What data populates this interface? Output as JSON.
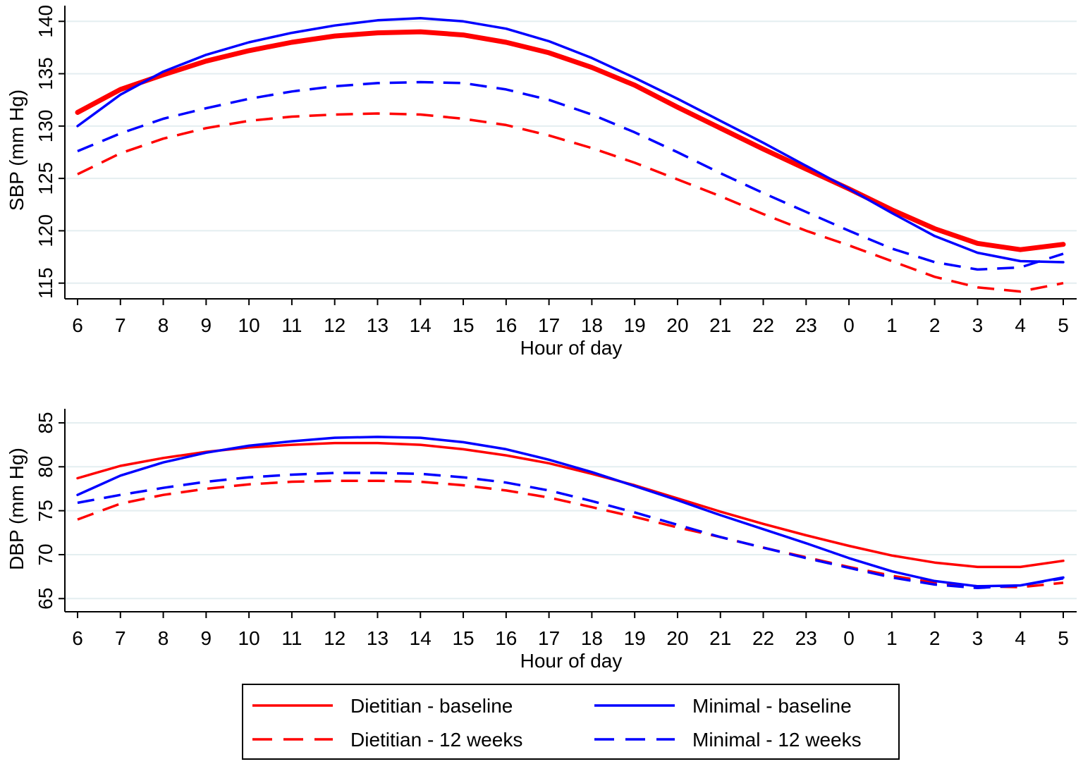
{
  "chart_data": [
    {
      "type": "line",
      "ylabel": "SBP (mm Hg)",
      "xlabel": "Hour of day",
      "categories": [
        "6",
        "7",
        "8",
        "9",
        "10",
        "11",
        "12",
        "13",
        "14",
        "15",
        "16",
        "17",
        "18",
        "19",
        "20",
        "21",
        "22",
        "23",
        "0",
        "1",
        "2",
        "3",
        "4",
        "5"
      ],
      "yticks": [
        115,
        120,
        125,
        130,
        135,
        140
      ],
      "ylim": [
        113.5,
        141.5
      ],
      "grid": true,
      "series": [
        {
          "name": "Dietitian - baseline",
          "color": "#ff0000",
          "style": "solid",
          "thick": true,
          "values": [
            131.3,
            133.5,
            134.9,
            136.2,
            137.2,
            138.0,
            138.6,
            138.9,
            139.0,
            138.7,
            138.0,
            137.0,
            135.6,
            133.9,
            131.8,
            129.8,
            127.8,
            125.9,
            124.0,
            122.0,
            120.2,
            118.8,
            118.2,
            118.7
          ]
        },
        {
          "name": "Dietitian - 12 weeks",
          "color": "#ff0000",
          "style": "dashed",
          "values": [
            125.4,
            127.4,
            128.8,
            129.8,
            130.5,
            130.9,
            131.1,
            131.2,
            131.1,
            130.7,
            130.1,
            129.1,
            127.9,
            126.5,
            124.9,
            123.3,
            121.6,
            120.0,
            118.6,
            117.1,
            115.6,
            114.6,
            114.2,
            115.0
          ]
        },
        {
          "name": "Minimal - baseline",
          "color": "#0000ff",
          "style": "solid",
          "values": [
            130.0,
            133.0,
            135.2,
            136.8,
            138.0,
            138.9,
            139.6,
            140.1,
            140.3,
            140.0,
            139.3,
            138.1,
            136.5,
            134.6,
            132.6,
            130.5,
            128.4,
            126.2,
            124.0,
            121.7,
            119.5,
            117.9,
            117.1,
            117.0
          ]
        },
        {
          "name": "Minimal - 12 weeks",
          "color": "#0000ff",
          "style": "dashed",
          "values": [
            127.6,
            129.3,
            130.7,
            131.7,
            132.6,
            133.3,
            133.8,
            134.1,
            134.2,
            134.1,
            133.5,
            132.5,
            131.1,
            129.4,
            127.5,
            125.5,
            123.6,
            121.8,
            120.0,
            118.3,
            117.0,
            116.3,
            116.5,
            117.8
          ]
        }
      ]
    },
    {
      "type": "line",
      "ylabel": "DBP (mm Hg)",
      "xlabel": "Hour of day",
      "categories": [
        "6",
        "7",
        "8",
        "9",
        "10",
        "11",
        "12",
        "13",
        "14",
        "15",
        "16",
        "17",
        "18",
        "19",
        "20",
        "21",
        "22",
        "23",
        "0",
        "1",
        "2",
        "3",
        "4",
        "5"
      ],
      "yticks": [
        65,
        70,
        75,
        80,
        85
      ],
      "ylim": [
        63.5,
        86.6
      ],
      "grid": true,
      "series": [
        {
          "name": "Dietitian - baseline",
          "color": "#ff0000",
          "style": "solid",
          "values": [
            78.7,
            80.1,
            81.0,
            81.7,
            82.2,
            82.5,
            82.7,
            82.7,
            82.5,
            82.0,
            81.3,
            80.4,
            79.2,
            77.9,
            76.4,
            74.9,
            73.5,
            72.2,
            71.0,
            69.9,
            69.1,
            68.6,
            68.6,
            69.3
          ]
        },
        {
          "name": "Dietitian - 12 weeks",
          "color": "#ff0000",
          "style": "dashed",
          "values": [
            74.0,
            75.8,
            76.8,
            77.5,
            78.0,
            78.3,
            78.4,
            78.4,
            78.3,
            77.9,
            77.3,
            76.5,
            75.4,
            74.3,
            73.1,
            72.0,
            70.8,
            69.7,
            68.6,
            67.6,
            66.8,
            66.4,
            66.3,
            66.8
          ]
        },
        {
          "name": "Minimal - baseline",
          "color": "#0000ff",
          "style": "solid",
          "values": [
            76.8,
            79.0,
            80.5,
            81.6,
            82.4,
            82.9,
            83.3,
            83.4,
            83.3,
            82.8,
            82.0,
            80.8,
            79.4,
            77.8,
            76.2,
            74.5,
            72.9,
            71.3,
            69.6,
            68.1,
            67.0,
            66.4,
            66.5,
            67.4
          ]
        },
        {
          "name": "Minimal - 12 weeks",
          "color": "#0000ff",
          "style": "dashed",
          "values": [
            75.9,
            76.8,
            77.6,
            78.3,
            78.8,
            79.1,
            79.3,
            79.3,
            79.2,
            78.8,
            78.2,
            77.3,
            76.1,
            74.8,
            73.4,
            72.0,
            70.8,
            69.6,
            68.5,
            67.4,
            66.6,
            66.2,
            66.5,
            67.3
          ]
        }
      ]
    }
  ],
  "legend": {
    "items": [
      {
        "label": "Dietitian - baseline",
        "color": "#ff0000",
        "style": "solid"
      },
      {
        "label": "Minimal - baseline",
        "color": "#0000ff",
        "style": "solid"
      },
      {
        "label": "Dietitian - 12 weeks",
        "color": "#ff0000",
        "style": "dashed"
      },
      {
        "label": "Minimal - 12 weeks",
        "color": "#0000ff",
        "style": "dashed"
      }
    ]
  }
}
